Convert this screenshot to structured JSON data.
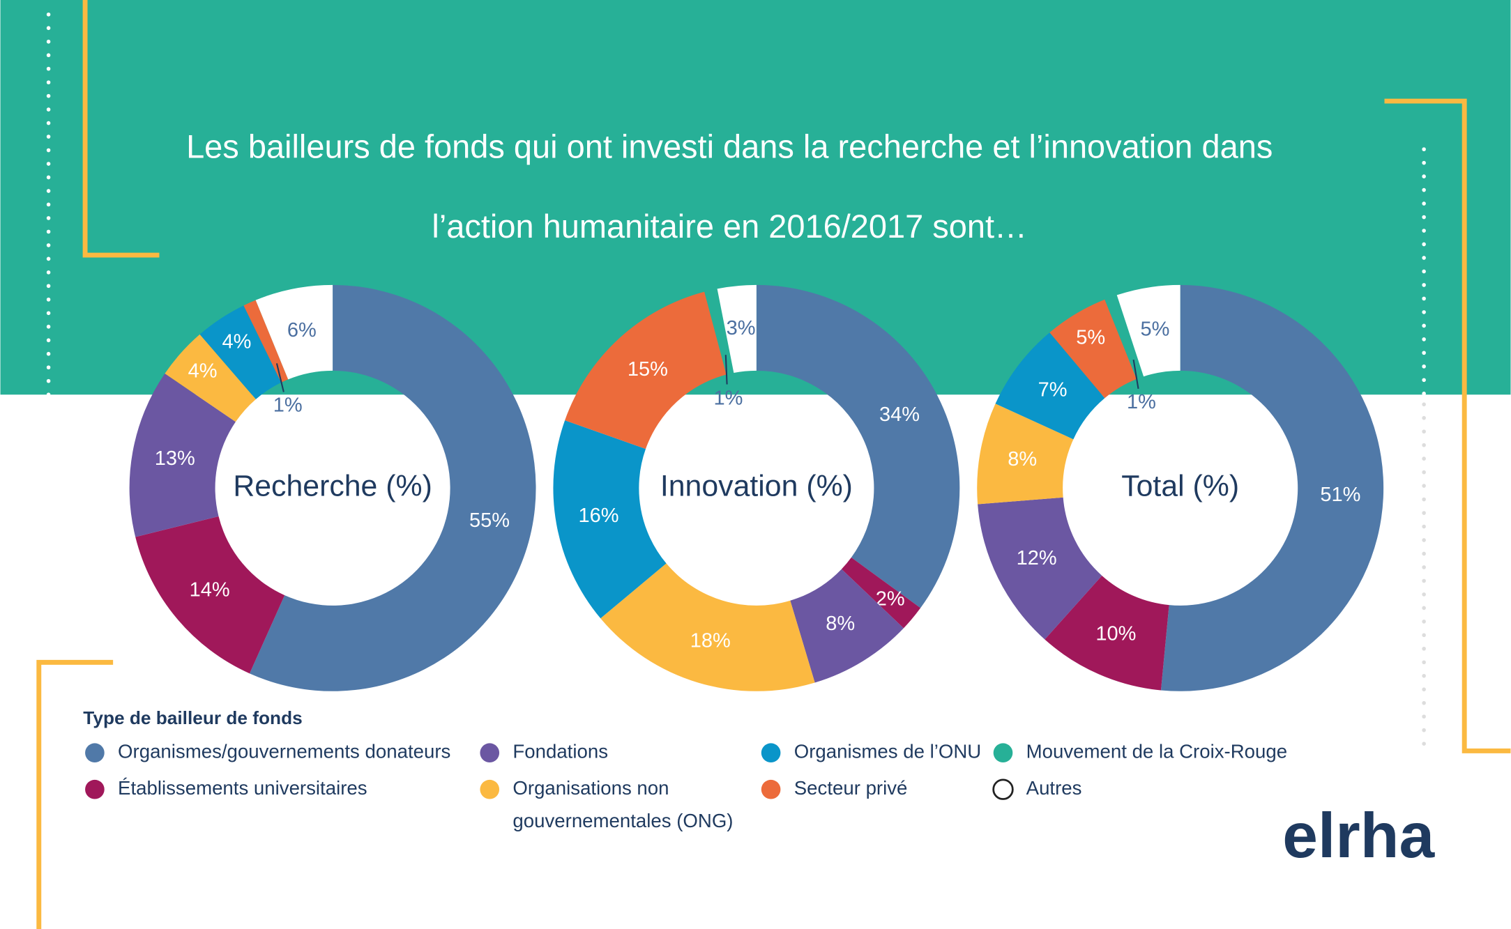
{
  "title": [
    "Les bailleurs de fonds qui ont investi dans la recherche et l’innovation dans",
    "l’action humanitaire en 2016/2017 sont…"
  ],
  "chart_data": [
    {
      "type": "pie",
      "title": "Recherche (%)",
      "values": [
        55,
        14,
        13,
        4,
        4,
        1,
        6
      ],
      "value_labels": [
        "55%",
        "14%",
        "13%",
        "4%",
        "4%",
        "1%",
        "6%"
      ],
      "colors": [
        "#5079a8",
        "#a0185a",
        "#6b57a2",
        "#fbb941",
        "#0a95c9",
        "#ec6b3b",
        "#ffffff"
      ]
    },
    {
      "type": "pie",
      "title": "Innovation (%)",
      "values": [
        34,
        2,
        8,
        18,
        16,
        15,
        1,
        3
      ],
      "value_labels": [
        "34%",
        "2%",
        "8%",
        "18%",
        "16%",
        "15%",
        "1%",
        "3%"
      ],
      "colors": [
        "#5079a8",
        "#a0185a",
        "#6b57a2",
        "#fbb941",
        "#0a95c9",
        "#ec6b3b",
        "#27b097",
        "#ffffff"
      ]
    },
    {
      "type": "pie",
      "title": "Total (%)",
      "values": [
        51,
        10,
        12,
        8,
        7,
        5,
        1,
        5
      ],
      "value_labels": [
        "51%",
        "10%",
        "12%",
        "8%",
        "7%",
        "5%",
        "1%",
        "5%"
      ],
      "colors": [
        "#5079a8",
        "#a0185a",
        "#6b57a2",
        "#fbb941",
        "#0a95c9",
        "#ec6b3b",
        "#27b097",
        "#ffffff"
      ]
    }
  ],
  "legend": {
    "title": "Type de bailleur de fonds",
    "items": [
      {
        "name": [
          "Organismes/gouvernements donateurs"
        ],
        "color": "#5079a8"
      },
      {
        "name": [
          "Établissements universitaires"
        ],
        "color": "#a0185a"
      },
      {
        "name": [
          "Fondations"
        ],
        "color": "#6b57a2"
      },
      {
        "name": [
          "Organisations non",
          "gouvernementales (ONG)"
        ],
        "color": "#fbb941"
      },
      {
        "name": [
          "Organismes de l’ONU"
        ],
        "color": "#0a95c9"
      },
      {
        "name": [
          "Secteur privé"
        ],
        "color": "#ec6b3b"
      },
      {
        "name": [
          "Mouvement de la Croix-Rouge"
        ],
        "color": "#27b097"
      },
      {
        "name": [
          "Autres"
        ],
        "color": "#ffffff"
      }
    ]
  },
  "logo": "elrha"
}
